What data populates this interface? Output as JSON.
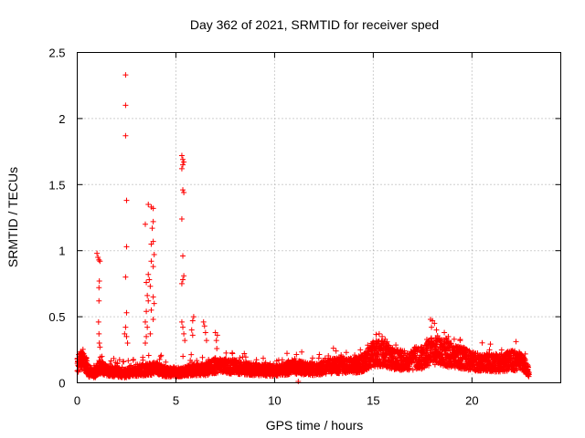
{
  "chart_data": {
    "type": "scatter",
    "title": "Day 362 of 2021, SRMTID for receiver sped",
    "xlabel": "GPS time / hours",
    "ylabel": "SRMTID / TECUs",
    "xlim": [
      0,
      24.5
    ],
    "ylim": [
      0,
      2.5
    ],
    "grid": true,
    "marker": "+",
    "series_color": "#ff0000",
    "x_ticks": [
      {
        "value": 0,
        "label": "0"
      },
      {
        "value": 5,
        "label": "5"
      },
      {
        "value": 10,
        "label": "10"
      },
      {
        "value": 15,
        "label": "15"
      },
      {
        "value": 20,
        "label": "20"
      }
    ],
    "y_ticks": [
      {
        "value": 0,
        "label": "0"
      },
      {
        "value": 0.5,
        "label": "0.5"
      },
      {
        "value": 1,
        "label": "1"
      },
      {
        "value": 1.5,
        "label": "1.5"
      },
      {
        "value": 2,
        "label": "2"
      },
      {
        "value": 2.5,
        "label": "2.5"
      }
    ],
    "baseline_envelope": [
      [
        0.0,
        0.14
      ],
      [
        0.3,
        0.18
      ],
      [
        0.6,
        0.08
      ],
      [
        0.9,
        0.07
      ],
      [
        1.2,
        0.12
      ],
      [
        1.5,
        0.09
      ],
      [
        2.0,
        0.08
      ],
      [
        2.4,
        0.07
      ],
      [
        3.0,
        0.09
      ],
      [
        3.5,
        0.1
      ],
      [
        4.0,
        0.11
      ],
      [
        4.5,
        0.08
      ],
      [
        5.0,
        0.08
      ],
      [
        5.5,
        0.09
      ],
      [
        6.0,
        0.1
      ],
      [
        6.5,
        0.1
      ],
      [
        7.0,
        0.13
      ],
      [
        8.0,
        0.12
      ],
      [
        9.0,
        0.1
      ],
      [
        10.0,
        0.09
      ],
      [
        11.0,
        0.12
      ],
      [
        12.0,
        0.1
      ],
      [
        13.0,
        0.13
      ],
      [
        14.0,
        0.13
      ],
      [
        14.5,
        0.15
      ],
      [
        15.0,
        0.22
      ],
      [
        15.5,
        0.22
      ],
      [
        16.0,
        0.18
      ],
      [
        16.5,
        0.17
      ],
      [
        17.0,
        0.17
      ],
      [
        17.5,
        0.19
      ],
      [
        18.0,
        0.24
      ],
      [
        18.5,
        0.23
      ],
      [
        19.0,
        0.2
      ],
      [
        19.5,
        0.19
      ],
      [
        20.0,
        0.16
      ],
      [
        20.5,
        0.16
      ],
      [
        21.0,
        0.15
      ],
      [
        21.5,
        0.15
      ],
      [
        22.0,
        0.17
      ],
      [
        22.5,
        0.16
      ],
      [
        22.9,
        0.08
      ]
    ],
    "spike_points": [
      [
        1.0,
        0.98
      ],
      [
        1.05,
        0.95
      ],
      [
        1.1,
        0.93
      ],
      [
        1.15,
        0.92
      ],
      [
        1.12,
        0.77
      ],
      [
        1.1,
        0.72
      ],
      [
        1.1,
        0.62
      ],
      [
        1.08,
        0.46
      ],
      [
        1.1,
        0.37
      ],
      [
        1.12,
        0.3
      ],
      [
        1.15,
        0.27
      ],
      [
        2.45,
        2.33
      ],
      [
        2.45,
        2.1
      ],
      [
        2.45,
        1.87
      ],
      [
        2.5,
        1.38
      ],
      [
        2.5,
        1.03
      ],
      [
        2.45,
        0.8
      ],
      [
        2.5,
        0.53
      ],
      [
        2.45,
        0.42
      ],
      [
        2.4,
        0.37
      ],
      [
        2.5,
        0.35
      ],
      [
        2.55,
        0.3
      ],
      [
        3.45,
        1.2
      ],
      [
        3.6,
        1.35
      ],
      [
        3.75,
        1.33
      ],
      [
        3.85,
        1.32
      ],
      [
        3.85,
        1.22
      ],
      [
        3.8,
        1.17
      ],
      [
        3.85,
        1.07
      ],
      [
        3.75,
        1.05
      ],
      [
        3.9,
        0.97
      ],
      [
        3.75,
        0.92
      ],
      [
        3.85,
        0.88
      ],
      [
        3.6,
        0.82
      ],
      [
        3.65,
        0.78
      ],
      [
        3.5,
        0.76
      ],
      [
        3.7,
        0.73
      ],
      [
        3.55,
        0.66
      ],
      [
        3.6,
        0.62
      ],
      [
        3.85,
        0.65
      ],
      [
        3.9,
        0.6
      ],
      [
        3.75,
        0.55
      ],
      [
        3.5,
        0.54
      ],
      [
        3.45,
        0.46
      ],
      [
        3.85,
        0.48
      ],
      [
        3.55,
        0.42
      ],
      [
        3.7,
        0.37
      ],
      [
        3.5,
        0.35
      ],
      [
        3.45,
        0.3
      ],
      [
        5.3,
        1.72
      ],
      [
        5.35,
        1.69
      ],
      [
        5.4,
        1.67
      ],
      [
        5.35,
        1.65
      ],
      [
        5.3,
        1.62
      ],
      [
        5.35,
        1.46
      ],
      [
        5.4,
        1.44
      ],
      [
        5.3,
        1.24
      ],
      [
        5.35,
        0.96
      ],
      [
        5.4,
        0.81
      ],
      [
        5.35,
        0.78
      ],
      [
        5.3,
        0.75
      ],
      [
        5.3,
        0.46
      ],
      [
        5.35,
        0.42
      ],
      [
        5.4,
        0.37
      ],
      [
        5.45,
        0.32
      ],
      [
        5.9,
        0.5
      ],
      [
        5.85,
        0.47
      ],
      [
        5.8,
        0.4
      ],
      [
        5.85,
        0.36
      ],
      [
        6.4,
        0.46
      ],
      [
        6.45,
        0.43
      ],
      [
        6.5,
        0.38
      ],
      [
        6.55,
        0.32
      ],
      [
        7.0,
        0.38
      ],
      [
        7.1,
        0.36
      ],
      [
        7.05,
        0.32
      ],
      [
        11.2,
        0.01
      ],
      [
        15.3,
        0.37
      ],
      [
        15.45,
        0.35
      ],
      [
        15.6,
        0.33
      ],
      [
        15.7,
        0.31
      ],
      [
        17.9,
        0.48
      ],
      [
        18.0,
        0.47
      ],
      [
        18.1,
        0.45
      ],
      [
        17.95,
        0.42
      ],
      [
        18.2,
        0.4
      ],
      [
        18.6,
        0.38
      ],
      [
        18.8,
        0.35
      ],
      [
        19.1,
        0.33
      ],
      [
        19.4,
        0.32
      ]
    ]
  }
}
